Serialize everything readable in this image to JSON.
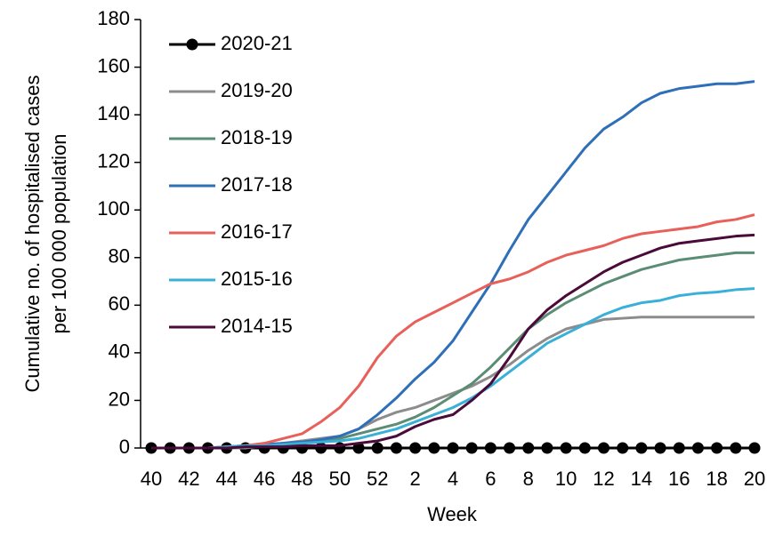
{
  "chart_data": {
    "type": "line",
    "y_label": [
      "Cumulative no. of hospitalised cases",
      "per 100 000 population"
    ],
    "x_label": "Week",
    "categories": [
      40,
      null,
      42,
      null,
      44,
      null,
      46,
      null,
      48,
      null,
      50,
      null,
      52,
      null,
      2,
      null,
      4,
      null,
      6,
      null,
      8,
      null,
      10,
      null,
      12,
      null,
      14,
      null,
      16,
      null,
      18,
      null,
      20
    ],
    "ylim": [
      0,
      180
    ],
    "yticks": [
      0,
      20,
      40,
      60,
      80,
      100,
      120,
      140,
      160,
      180
    ],
    "legend": "upper-left",
    "series": [
      {
        "name": "2020-21",
        "color": "#000000",
        "markers": true,
        "values": [
          0,
          0,
          0,
          0,
          0,
          0,
          0,
          0,
          0,
          0,
          0,
          0,
          0,
          0,
          0,
          0,
          0,
          0,
          0,
          0,
          0,
          0,
          0,
          0,
          0,
          0,
          0,
          0,
          0,
          0,
          0,
          0,
          0
        ]
      },
      {
        "name": "2019-20",
        "color": "#8c8c8c",
        "values": [
          0,
          0,
          0,
          0,
          0,
          0,
          1,
          2,
          3,
          4,
          5,
          8,
          12,
          15,
          17,
          20,
          23,
          26,
          30,
          35,
          41,
          46,
          50,
          52,
          54,
          54.5,
          55,
          55,
          55,
          55,
          55,
          55,
          55
        ]
      },
      {
        "name": "2018-19",
        "color": "#5b8c74",
        "values": [
          0,
          0,
          0,
          0,
          0,
          0.5,
          1,
          1.5,
          2,
          3,
          4,
          6,
          8,
          10,
          13,
          17,
          22,
          27,
          34,
          42,
          50,
          56,
          61,
          65,
          69,
          72,
          75,
          77,
          79,
          80,
          81,
          82,
          82
        ]
      },
      {
        "name": "2017-18",
        "color": "#2e6fb8",
        "values": [
          0,
          0,
          0,
          0,
          0.5,
          1,
          1.5,
          2,
          2.5,
          3.5,
          5,
          8,
          14,
          21,
          29,
          36,
          45,
          57,
          69,
          83,
          96,
          106,
          116,
          126,
          134,
          139,
          145,
          149,
          151,
          152,
          153,
          153,
          154
        ]
      },
      {
        "name": "2016-17",
        "color": "#e8605a",
        "values": [
          0,
          0,
          0,
          0,
          0.5,
          1,
          2,
          4,
          6,
          11,
          17,
          26,
          38,
          47,
          53,
          57,
          61,
          65,
          69,
          71,
          74,
          78,
          81,
          83,
          85,
          88,
          90,
          91,
          92,
          93,
          95,
          96,
          98
        ]
      },
      {
        "name": "2015-16",
        "color": "#3ab0d8",
        "values": [
          0,
          0,
          0,
          0,
          0.5,
          1,
          1,
          1.5,
          2,
          2.5,
          3,
          4,
          6,
          8,
          11,
          14,
          17,
          21,
          26,
          32,
          38,
          44,
          48,
          52,
          56,
          59,
          61,
          62,
          64,
          65,
          65.5,
          66.5,
          67
        ]
      },
      {
        "name": "2014-15",
        "color": "#4a0a3a",
        "values": [
          0,
          0,
          0,
          0,
          0,
          0.5,
          0.5,
          0.5,
          1,
          1,
          1,
          2,
          3,
          5,
          9,
          12,
          14,
          20,
          27,
          38,
          50,
          58,
          64,
          69,
          74,
          78,
          81,
          84,
          86,
          87,
          88,
          89,
          89.5
        ]
      }
    ]
  }
}
